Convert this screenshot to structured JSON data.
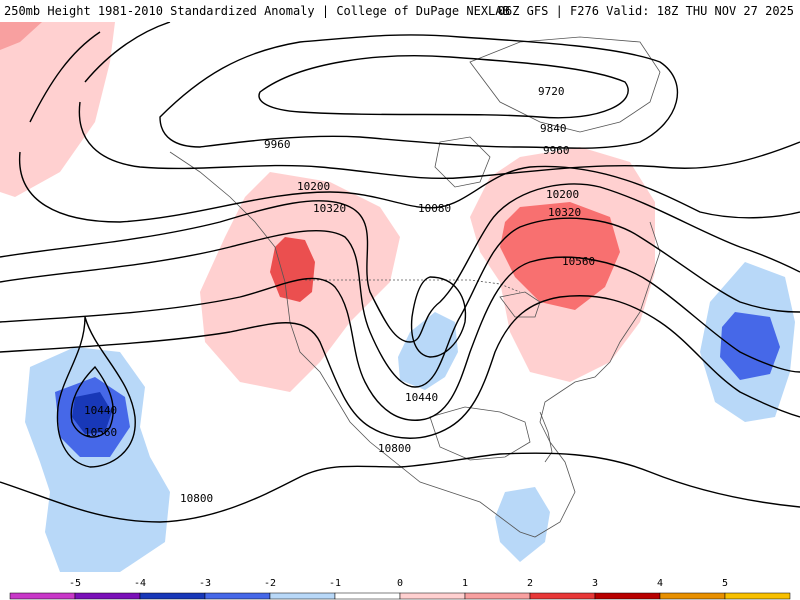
{
  "header": {
    "left_text": "250mb Height 1981-2010 Standardized Anomaly | College of DuPage NEXLAB",
    "right_text": "06Z GFS | F276 Valid: 18Z THU NOV 27 2025"
  },
  "contour_labels": [
    "9720",
    "9840",
    "9960",
    "9960",
    "10080",
    "10200",
    "10200",
    "10320",
    "10320",
    "10440",
    "10440",
    "10560",
    "10560",
    "10800",
    "10800"
  ],
  "colorbar": {
    "tick_labels": [
      "-5",
      "-4",
      "-3",
      "-2",
      "-1",
      "0",
      "1",
      "2",
      "3",
      "4",
      "5"
    ],
    "colors": [
      "#c838c8",
      "#7a10b8",
      "#1838b8",
      "#4668e8",
      "#b8d8f8",
      "#ffffff",
      "#ffd0d0",
      "#f8a0a0",
      "#e83838",
      "#b80000",
      "#e89000",
      "#f8c000"
    ]
  }
}
